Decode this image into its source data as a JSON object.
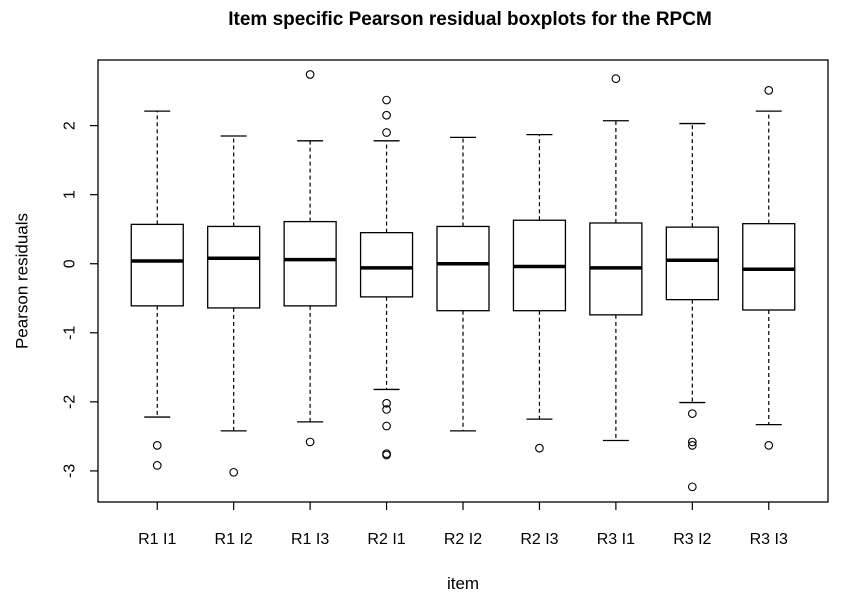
{
  "chart_data": {
    "type": "boxplot",
    "title": "Item specific Pearson residual boxplots for the RPCM",
    "xlabel": "item",
    "ylabel": "Pearson residuals",
    "ylim": [
      -3.45,
      2.95
    ],
    "yticks": [
      -3,
      -2,
      -1,
      0,
      1,
      2
    ],
    "ytick_labels": [
      "-3",
      "-2",
      "-1",
      "0",
      "1",
      "2"
    ],
    "grid": false,
    "categories": [
      "R1 I1",
      "R1 I2",
      "R1 I3",
      "R2 I1",
      "R2 I2",
      "R2 I3",
      "R3 I1",
      "R3 I2",
      "R3 I3"
    ],
    "boxes": [
      {
        "name": "R1 I1",
        "whisker_low": -2.22,
        "q1": -0.61,
        "median": 0.04,
        "q3": 0.57,
        "whisker_high": 2.21,
        "outliers": [
          -2.63,
          -2.92
        ]
      },
      {
        "name": "R1 I2",
        "whisker_low": -2.42,
        "q1": -0.64,
        "median": 0.08,
        "q3": 0.54,
        "whisker_high": 1.85,
        "outliers": [
          -3.02
        ]
      },
      {
        "name": "R1 I3",
        "whisker_low": -2.29,
        "q1": -0.61,
        "median": 0.06,
        "q3": 0.61,
        "whisker_high": 1.78,
        "outliers": [
          2.74,
          -2.58
        ]
      },
      {
        "name": "R2 I1",
        "whisker_low": -1.82,
        "q1": -0.48,
        "median": -0.06,
        "q3": 0.45,
        "whisker_high": 1.78,
        "outliers": [
          2.37,
          2.15,
          1.9,
          -2.02,
          -2.11,
          -2.35,
          -2.75,
          -2.77
        ]
      },
      {
        "name": "R2 I2",
        "whisker_low": -2.42,
        "q1": -0.68,
        "median": 0.0,
        "q3": 0.54,
        "whisker_high": 1.83,
        "outliers": []
      },
      {
        "name": "R2 I3",
        "whisker_low": -2.25,
        "q1": -0.68,
        "median": -0.04,
        "q3": 0.63,
        "whisker_high": 1.87,
        "outliers": [
          -2.67
        ]
      },
      {
        "name": "R3 I1",
        "whisker_low": -2.56,
        "q1": -0.74,
        "median": -0.06,
        "q3": 0.59,
        "whisker_high": 2.07,
        "outliers": [
          2.68
        ]
      },
      {
        "name": "R3 I2",
        "whisker_low": -2.01,
        "q1": -0.52,
        "median": 0.05,
        "q3": 0.53,
        "whisker_high": 2.03,
        "outliers": [
          -2.17,
          -2.58,
          -2.63,
          -3.23
        ]
      },
      {
        "name": "R3 I3",
        "whisker_low": -2.33,
        "q1": -0.67,
        "median": -0.08,
        "q3": 0.58,
        "whisker_high": 2.21,
        "outliers": [
          2.51,
          -2.63
        ]
      }
    ]
  }
}
